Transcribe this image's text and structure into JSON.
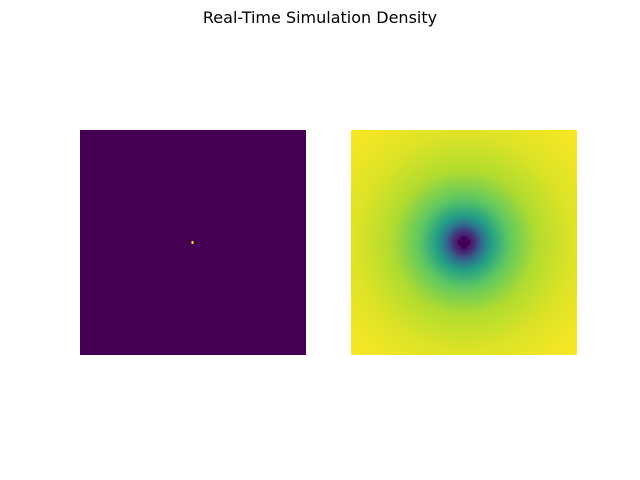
{
  "title": "Real-Time Simulation Density",
  "chart_data": [
    {
      "type": "heatmap",
      "colormap": "viridis",
      "grid": false,
      "axes_visible": false,
      "colorbar": false,
      "background_value": 0,
      "features": [
        {
          "kind": "point",
          "row": 0.5,
          "col": 0.5,
          "value": 1
        }
      ]
    },
    {
      "type": "heatmap",
      "colormap": "viridis",
      "grid": false,
      "axes_visible": false,
      "colorbar": false,
      "background_value": 1,
      "features": [
        {
          "kind": "radial-well",
          "row": 0.5,
          "col": 0.5,
          "min_value": 0,
          "max_value": 1
        }
      ]
    }
  ],
  "colors": {
    "viridis_low": "#440154",
    "viridis_mid": "#21918c",
    "viridis_high": "#fde725",
    "background": "#ffffff"
  }
}
